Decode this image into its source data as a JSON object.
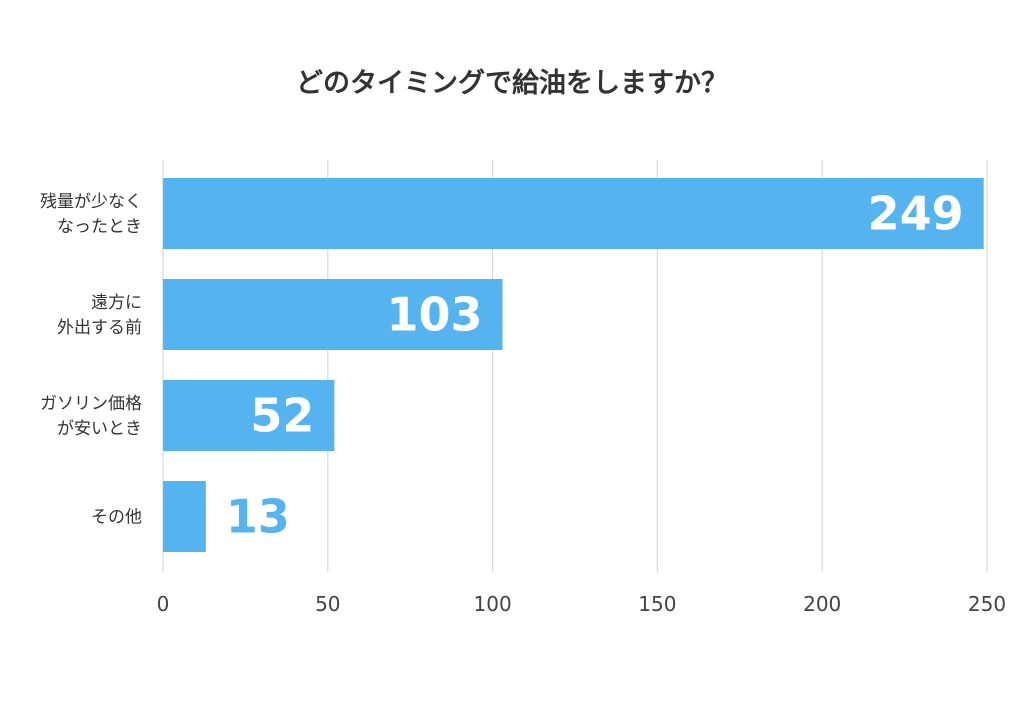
{
  "chart_data": {
    "type": "bar",
    "orientation": "horizontal",
    "title": "どのタイミングで給油をしますか？",
    "categories": [
      [
        "残量が少なく",
        "なったとき"
      ],
      [
        "遠方に",
        "外出する前"
      ],
      [
        "ガソリン価格",
        "が安いとき"
      ],
      [
        "その他"
      ]
    ],
    "values": [
      249,
      103,
      52,
      13
    ],
    "xlabel": "",
    "ylabel": "",
    "xlim": [
      0,
      250
    ],
    "xticks": [
      0,
      50,
      100,
      150,
      200,
      250
    ],
    "grid": true,
    "legend": "none",
    "colors": {
      "bar": "#55b4f0",
      "label_inside": "#ffffff",
      "label_outside": "#55b4f0",
      "grid": "#d9d9d9"
    }
  }
}
